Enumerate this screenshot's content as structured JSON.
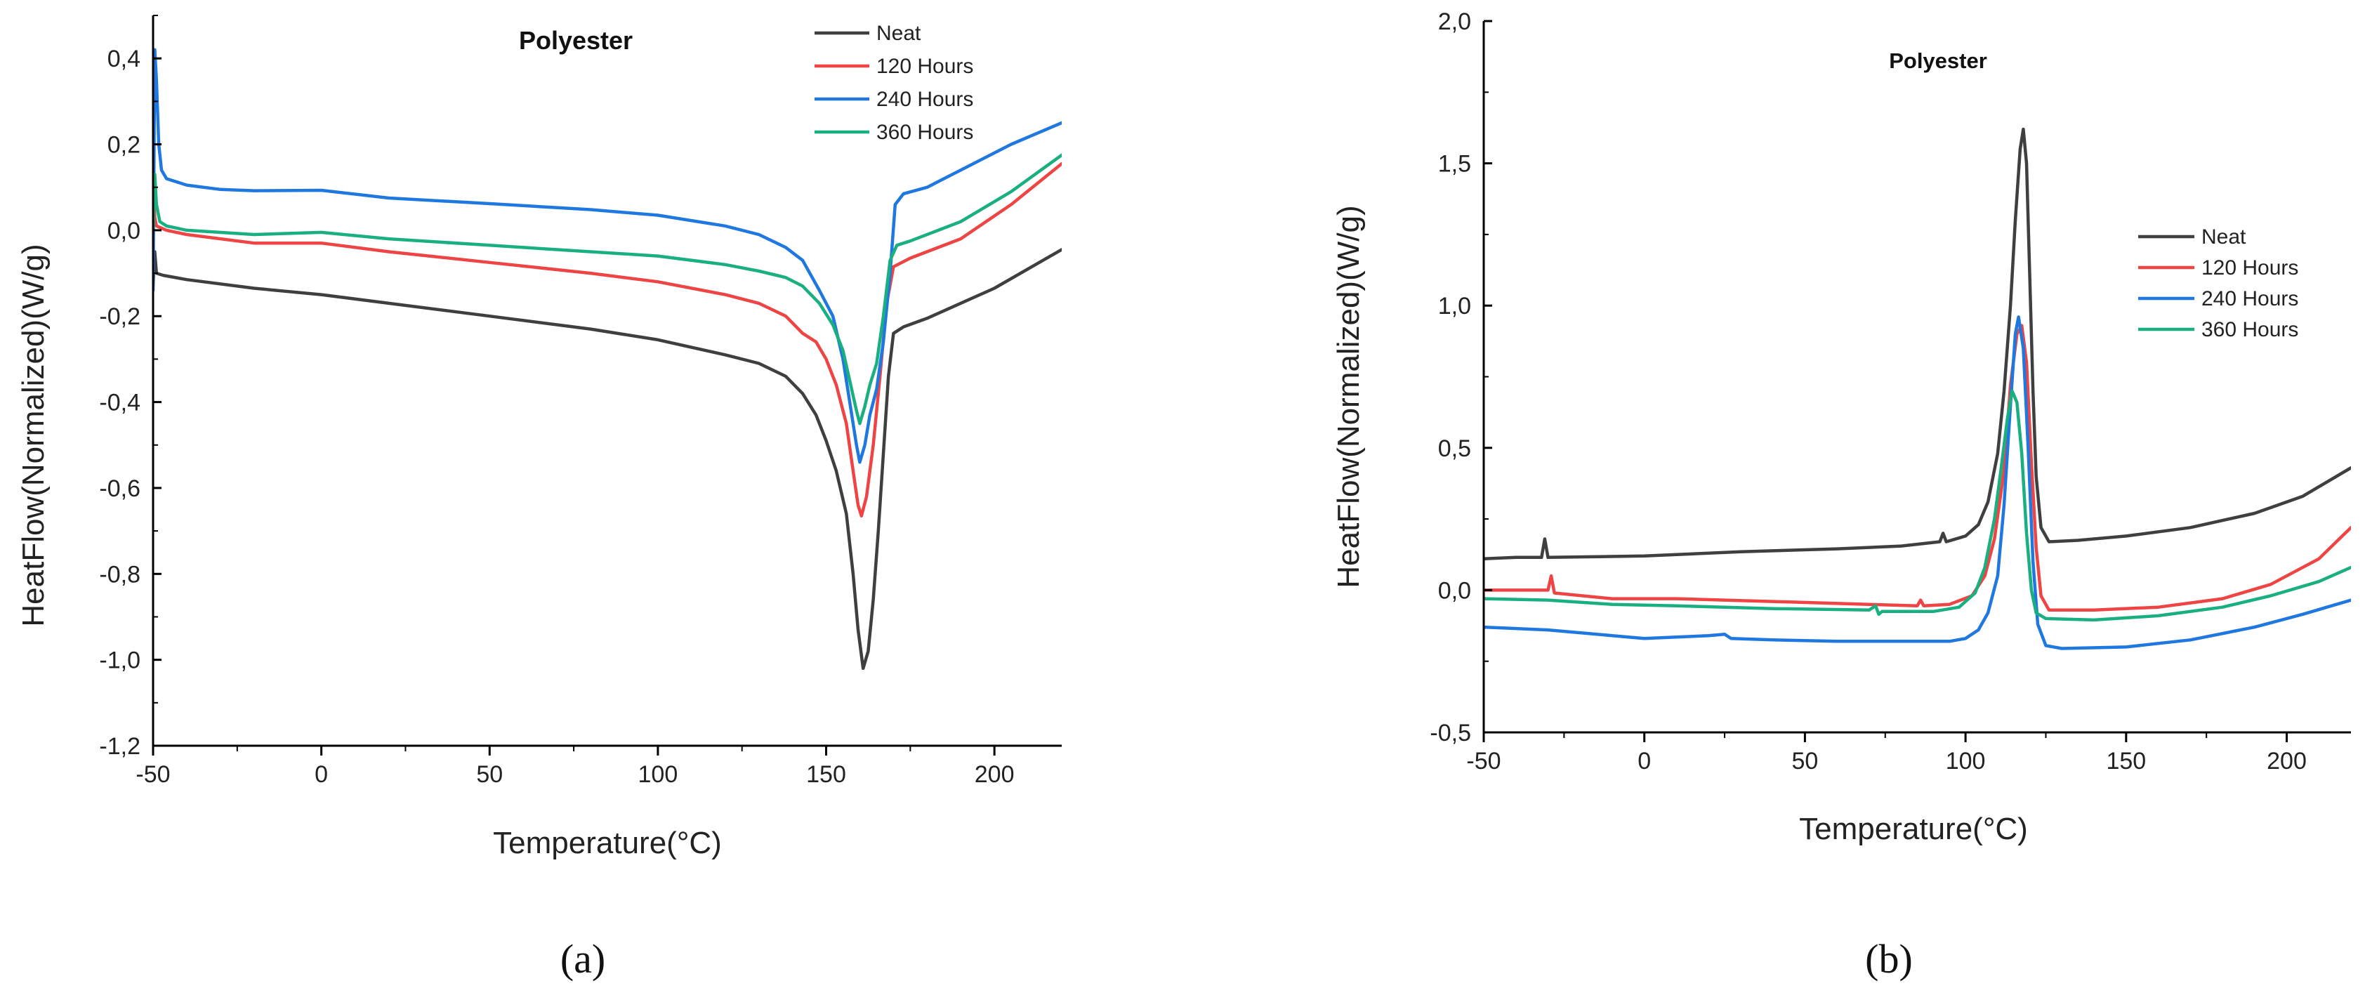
{
  "chart_data": [
    {
      "type": "line",
      "panel_label": "(a)",
      "title": "Polyester",
      "xlabel": "Temperature(°C)",
      "ylabel": "HeatFlow(Normalized)(W/g)",
      "xlim": [
        -50,
        220
      ],
      "ylim": [
        -1.2,
        0.5
      ],
      "xticks": [
        -50,
        0,
        50,
        100,
        150,
        200
      ],
      "xtick_labels": [
        "-50",
        "0",
        "50",
        "100",
        "150",
        "200"
      ],
      "yticks": [
        -1.2,
        -1.0,
        -0.8,
        -0.6,
        -0.4,
        -0.2,
        0.0,
        0.2,
        0.4
      ],
      "ytick_labels": [
        "-1,2",
        "-1,0",
        "-0,8",
        "-0,6",
        "-0,4",
        "-0,2",
        "0,0",
        "0,2",
        "0,4"
      ],
      "legend_position": "top-right",
      "series": [
        {
          "name": "Neat",
          "color": "#3f3f3f",
          "points": [
            [
              -50,
              -0.13
            ],
            [
              -49.5,
              -0.05
            ],
            [
              -49,
              -0.1
            ],
            [
              -47,
              -0.105
            ],
            [
              -40,
              -0.115
            ],
            [
              -20,
              -0.135
            ],
            [
              0,
              -0.15
            ],
            [
              20,
              -0.17
            ],
            [
              50,
              -0.2
            ],
            [
              80,
              -0.23
            ],
            [
              100,
              -0.255
            ],
            [
              120,
              -0.29
            ],
            [
              130,
              -0.31
            ],
            [
              138,
              -0.34
            ],
            [
              143,
              -0.38
            ],
            [
              147,
              -0.43
            ],
            [
              150,
              -0.49
            ],
            [
              153,
              -0.56
            ],
            [
              156,
              -0.66
            ],
            [
              158,
              -0.8
            ],
            [
              159.5,
              -0.93
            ],
            [
              161,
              -1.02
            ],
            [
              162.5,
              -0.98
            ],
            [
              164,
              -0.86
            ],
            [
              165.5,
              -0.7
            ],
            [
              167,
              -0.52
            ],
            [
              168.5,
              -0.34
            ],
            [
              170,
              -0.24
            ],
            [
              173,
              -0.225
            ],
            [
              180,
              -0.205
            ],
            [
              200,
              -0.135
            ],
            [
              220,
              -0.045
            ]
          ]
        },
        {
          "name": "120 Hours",
          "color": "#ee4444",
          "points": [
            [
              -50,
              0.11
            ],
            [
              -49.5,
              0.03
            ],
            [
              -49,
              0.01
            ],
            [
              -46,
              0.0
            ],
            [
              -40,
              -0.01
            ],
            [
              -20,
              -0.03
            ],
            [
              0,
              -0.03
            ],
            [
              20,
              -0.05
            ],
            [
              50,
              -0.075
            ],
            [
              80,
              -0.1
            ],
            [
              100,
              -0.12
            ],
            [
              120,
              -0.15
            ],
            [
              130,
              -0.17
            ],
            [
              138,
              -0.2
            ],
            [
              143,
              -0.24
            ],
            [
              147,
              -0.26
            ],
            [
              150,
              -0.3
            ],
            [
              153,
              -0.36
            ],
            [
              156,
              -0.45
            ],
            [
              158,
              -0.56
            ],
            [
              159.5,
              -0.64
            ],
            [
              160.5,
              -0.665
            ],
            [
              162,
              -0.62
            ],
            [
              164,
              -0.5
            ],
            [
              166,
              -0.34
            ],
            [
              168,
              -0.17
            ],
            [
              170,
              -0.085
            ],
            [
              175,
              -0.065
            ],
            [
              190,
              -0.02
            ],
            [
              205,
              0.06
            ],
            [
              220,
              0.155
            ]
          ]
        },
        {
          "name": "240 Hours",
          "color": "#1f77e0",
          "points": [
            [
              -50,
              -0.14
            ],
            [
              -49.5,
              0.42
            ],
            [
              -49,
              0.35
            ],
            [
              -48.3,
              0.2
            ],
            [
              -47.5,
              0.14
            ],
            [
              -46,
              0.12
            ],
            [
              -40,
              0.105
            ],
            [
              -30,
              0.095
            ],
            [
              -20,
              0.092
            ],
            [
              0,
              0.093
            ],
            [
              20,
              0.075
            ],
            [
              50,
              0.062
            ],
            [
              80,
              0.048
            ],
            [
              100,
              0.035
            ],
            [
              120,
              0.01
            ],
            [
              130,
              -0.01
            ],
            [
              138,
              -0.04
            ],
            [
              143,
              -0.07
            ],
            [
              148,
              -0.14
            ],
            [
              152,
              -0.2
            ],
            [
              155,
              -0.3
            ],
            [
              157,
              -0.4
            ],
            [
              159,
              -0.5
            ],
            [
              160,
              -0.54
            ],
            [
              161.5,
              -0.5
            ],
            [
              163,
              -0.43
            ],
            [
              165,
              -0.37
            ],
            [
              167,
              -0.26
            ],
            [
              169,
              -0.1
            ],
            [
              170.5,
              0.06
            ],
            [
              173,
              0.085
            ],
            [
              180,
              0.1
            ],
            [
              190,
              0.14
            ],
            [
              205,
              0.2
            ],
            [
              220,
              0.25
            ]
          ]
        },
        {
          "name": "360 Hours",
          "color": "#1aaf80",
          "points": [
            [
              -50,
              0.0
            ],
            [
              -49.5,
              0.13
            ],
            [
              -49,
              0.06
            ],
            [
              -48,
              0.02
            ],
            [
              -46,
              0.01
            ],
            [
              -40,
              0.0
            ],
            [
              -20,
              -0.01
            ],
            [
              0,
              -0.005
            ],
            [
              20,
              -0.02
            ],
            [
              50,
              -0.035
            ],
            [
              80,
              -0.05
            ],
            [
              100,
              -0.06
            ],
            [
              120,
              -0.08
            ],
            [
              130,
              -0.095
            ],
            [
              138,
              -0.11
            ],
            [
              143,
              -0.13
            ],
            [
              148,
              -0.17
            ],
            [
              152,
              -0.22
            ],
            [
              155,
              -0.28
            ],
            [
              157,
              -0.35
            ],
            [
              159,
              -0.42
            ],
            [
              160,
              -0.45
            ],
            [
              161.5,
              -0.41
            ],
            [
              163,
              -0.36
            ],
            [
              165,
              -0.31
            ],
            [
              167,
              -0.2
            ],
            [
              169,
              -0.07
            ],
            [
              171,
              -0.035
            ],
            [
              175,
              -0.025
            ],
            [
              190,
              0.02
            ],
            [
              205,
              0.09
            ],
            [
              220,
              0.175
            ]
          ]
        }
      ]
    },
    {
      "type": "line",
      "panel_label": "(b)",
      "title": "Polyester",
      "xlabel": "Temperature(°C)",
      "ylabel": "HeatFlow(Normalized)(W/g)",
      "xlim": [
        -50,
        220
      ],
      "ylim": [
        -0.5,
        2.0
      ],
      "xticks": [
        -50,
        0,
        50,
        100,
        150,
        200
      ],
      "xtick_labels": [
        "-50",
        "0",
        "50",
        "100",
        "150",
        "200"
      ],
      "yticks": [
        -0.5,
        0.0,
        0.5,
        1.0,
        1.5,
        2.0
      ],
      "ytick_labels": [
        "-0,5",
        "0,0",
        "0,5",
        "1,0",
        "1,5",
        "2,0"
      ],
      "legend_position": "right",
      "series": [
        {
          "name": "Neat",
          "color": "#3f3f3f",
          "points": [
            [
              -50,
              0.11
            ],
            [
              -40,
              0.115
            ],
            [
              -32,
              0.115
            ],
            [
              -31,
              0.18
            ],
            [
              -30,
              0.115
            ],
            [
              0,
              0.12
            ],
            [
              30,
              0.135
            ],
            [
              60,
              0.145
            ],
            [
              80,
              0.155
            ],
            [
              92,
              0.17
            ],
            [
              93,
              0.2
            ],
            [
              94,
              0.17
            ],
            [
              100,
              0.19
            ],
            [
              104,
              0.23
            ],
            [
              107,
              0.31
            ],
            [
              110,
              0.48
            ],
            [
              112,
              0.7
            ],
            [
              114,
              1.0
            ],
            [
              115.5,
              1.3
            ],
            [
              117,
              1.55
            ],
            [
              118,
              1.62
            ],
            [
              119,
              1.5
            ],
            [
              120,
              1.1
            ],
            [
              121,
              0.7
            ],
            [
              122,
              0.4
            ],
            [
              123.5,
              0.22
            ],
            [
              126,
              0.17
            ],
            [
              135,
              0.175
            ],
            [
              150,
              0.19
            ],
            [
              170,
              0.22
            ],
            [
              190,
              0.27
            ],
            [
              205,
              0.33
            ],
            [
              220,
              0.43
            ]
          ]
        },
        {
          "name": "120 Hours",
          "color": "#ee4444",
          "points": [
            [
              -50,
              0.0
            ],
            [
              -40,
              0.0
            ],
            [
              -30,
              0.0
            ],
            [
              -29,
              0.05
            ],
            [
              -28,
              -0.01
            ],
            [
              -10,
              -0.03
            ],
            [
              10,
              -0.03
            ],
            [
              40,
              -0.04
            ],
            [
              70,
              -0.05
            ],
            [
              85,
              -0.055
            ],
            [
              86,
              -0.035
            ],
            [
              87,
              -0.055
            ],
            [
              95,
              -0.05
            ],
            [
              102,
              -0.02
            ],
            [
              106,
              0.05
            ],
            [
              109,
              0.18
            ],
            [
              112,
              0.42
            ],
            [
              114,
              0.72
            ],
            [
              116,
              0.9
            ],
            [
              117.5,
              0.93
            ],
            [
              119,
              0.8
            ],
            [
              120.5,
              0.45
            ],
            [
              122,
              0.15
            ],
            [
              123.5,
              -0.02
            ],
            [
              126,
              -0.07
            ],
            [
              140,
              -0.07
            ],
            [
              160,
              -0.06
            ],
            [
              180,
              -0.03
            ],
            [
              195,
              0.02
            ],
            [
              210,
              0.11
            ],
            [
              220,
              0.22
            ]
          ]
        },
        {
          "name": "240 Hours",
          "color": "#1f77e0",
          "points": [
            [
              -50,
              -0.13
            ],
            [
              -30,
              -0.14
            ],
            [
              -10,
              -0.16
            ],
            [
              0,
              -0.17
            ],
            [
              10,
              -0.165
            ],
            [
              20,
              -0.16
            ],
            [
              25,
              -0.155
            ],
            [
              27,
              -0.17
            ],
            [
              40,
              -0.175
            ],
            [
              60,
              -0.18
            ],
            [
              80,
              -0.18
            ],
            [
              95,
              -0.18
            ],
            [
              100,
              -0.17
            ],
            [
              104,
              -0.14
            ],
            [
              107,
              -0.08
            ],
            [
              110,
              0.05
            ],
            [
              112,
              0.3
            ],
            [
              114,
              0.65
            ],
            [
              115.5,
              0.9
            ],
            [
              116.5,
              0.96
            ],
            [
              118,
              0.85
            ],
            [
              119.5,
              0.5
            ],
            [
              121,
              0.1
            ],
            [
              122.5,
              -0.12
            ],
            [
              125,
              -0.195
            ],
            [
              130,
              -0.205
            ],
            [
              150,
              -0.2
            ],
            [
              170,
              -0.175
            ],
            [
              190,
              -0.13
            ],
            [
              205,
              -0.085
            ],
            [
              220,
              -0.035
            ]
          ]
        },
        {
          "name": "360 Hours",
          "color": "#1aaf80",
          "points": [
            [
              -50,
              -0.03
            ],
            [
              -30,
              -0.035
            ],
            [
              -10,
              -0.05
            ],
            [
              10,
              -0.055
            ],
            [
              40,
              -0.065
            ],
            [
              70,
              -0.07
            ],
            [
              72,
              -0.055
            ],
            [
              73,
              -0.085
            ],
            [
              74,
              -0.075
            ],
            [
              90,
              -0.075
            ],
            [
              98,
              -0.06
            ],
            [
              103,
              -0.01
            ],
            [
              106,
              0.08
            ],
            [
              109,
              0.25
            ],
            [
              111,
              0.42
            ],
            [
              113,
              0.6
            ],
            [
              114.5,
              0.7
            ],
            [
              116,
              0.66
            ],
            [
              117.5,
              0.48
            ],
            [
              119,
              0.2
            ],
            [
              120.5,
              0.0
            ],
            [
              122,
              -0.08
            ],
            [
              125,
              -0.1
            ],
            [
              140,
              -0.105
            ],
            [
              160,
              -0.09
            ],
            [
              180,
              -0.06
            ],
            [
              195,
              -0.02
            ],
            [
              210,
              0.03
            ],
            [
              220,
              0.08
            ]
          ]
        }
      ]
    }
  ]
}
